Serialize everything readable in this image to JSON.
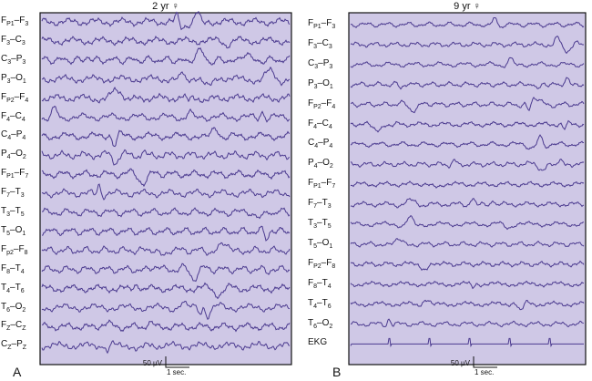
{
  "colors": {
    "panel_bg": "#cfc8e6",
    "trace": "#4b3a8f",
    "frame": "#111111"
  },
  "chart_data": [
    {
      "type": "line",
      "panel_letter": "A",
      "title": "2 yr ♀",
      "channels": [
        {
          "base": "F",
          "sub1": "P1",
          "mid": "–F",
          "sub2": "3"
        },
        {
          "base": "F",
          "sub1": "3",
          "mid": "–C",
          "sub2": "3"
        },
        {
          "base": "C",
          "sub1": "3",
          "mid": "–P",
          "sub2": "3"
        },
        {
          "base": "P",
          "sub1": "3",
          "mid": "–O",
          "sub2": "1"
        },
        {
          "base": "F",
          "sub1": "P2",
          "mid": "–F",
          "sub2": "4"
        },
        {
          "base": "F",
          "sub1": "4",
          "mid": "–C",
          "sub2": "4"
        },
        {
          "base": "C",
          "sub1": "4",
          "mid": "–P",
          "sub2": "4"
        },
        {
          "base": "P",
          "sub1": "4",
          "mid": "–O",
          "sub2": "2"
        },
        {
          "base": "F",
          "sub1": "P1",
          "mid": "–F",
          "sub2": "7"
        },
        {
          "base": "F",
          "sub1": "7",
          "mid": "–T",
          "sub2": "3"
        },
        {
          "base": "T",
          "sub1": "3",
          "mid": "–T",
          "sub2": "5"
        },
        {
          "base": "T",
          "sub1": "5",
          "mid": "–O",
          "sub2": "1"
        },
        {
          "base": "F",
          "sub1": "p2",
          "mid": "–F",
          "sub2": "8"
        },
        {
          "base": "F",
          "sub1": "8",
          "mid": "–T",
          "sub2": "4"
        },
        {
          "base": "T",
          "sub1": "4",
          "mid": "–T",
          "sub2": "6"
        },
        {
          "base": "T",
          "sub1": "6",
          "mid": "–O",
          "sub2": "2"
        },
        {
          "base": "F",
          "sub1": "Z",
          "mid": "–C",
          "sub2": "Z"
        },
        {
          "base": "C",
          "sub1": "Z",
          "mid": "–P",
          "sub2": "Z"
        }
      ],
      "scale_amplitude": "50 µV",
      "scale_time": "1 sec."
    },
    {
      "type": "line",
      "panel_letter": "B",
      "title": "9 yr ♀",
      "channels": [
        {
          "base": "F",
          "sub1": "P1",
          "mid": "–F",
          "sub2": "3"
        },
        {
          "base": "F",
          "sub1": "3",
          "mid": "–C",
          "sub2": "3"
        },
        {
          "base": "C",
          "sub1": "3",
          "mid": "–P",
          "sub2": "3"
        },
        {
          "base": "P",
          "sub1": "3",
          "mid": "–O",
          "sub2": "1"
        },
        {
          "base": "F",
          "sub1": "P2",
          "mid": "–F",
          "sub2": "4"
        },
        {
          "base": "F",
          "sub1": "4",
          "mid": "–C",
          "sub2": "4"
        },
        {
          "base": "C",
          "sub1": "4",
          "mid": "–P",
          "sub2": "4"
        },
        {
          "base": "P",
          "sub1": "4",
          "mid": "–O",
          "sub2": "2"
        },
        {
          "base": "F",
          "sub1": "P1",
          "mid": "–F",
          "sub2": "7"
        },
        {
          "base": "F",
          "sub1": "7",
          "mid": "–T",
          "sub2": "3"
        },
        {
          "base": "T",
          "sub1": "3",
          "mid": "–T",
          "sub2": "5"
        },
        {
          "base": "T",
          "sub1": "5",
          "mid": "–O",
          "sub2": "1"
        },
        {
          "base": "F",
          "sub1": "P2",
          "mid": "–F",
          "sub2": "8"
        },
        {
          "base": "F",
          "sub1": "8",
          "mid": "–T",
          "sub2": "4"
        },
        {
          "base": "T",
          "sub1": "4",
          "mid": "–T",
          "sub2": "6"
        },
        {
          "base": "T",
          "sub1": "6",
          "mid": "–O",
          "sub2": "2"
        },
        {
          "base": "EKG",
          "sub1": "",
          "mid": "",
          "sub2": ""
        }
      ],
      "scale_amplitude": "50 µV",
      "scale_time": "1 sec."
    }
  ]
}
